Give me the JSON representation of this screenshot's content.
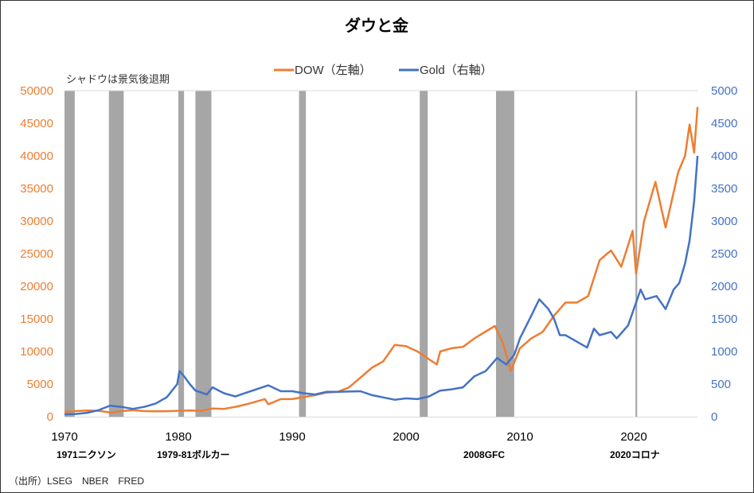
{
  "chart_data": {
    "type": "line",
    "title": "ダウと金",
    "shadow_note": "シャドウは景気後退期",
    "source": "（出所）LSEG　NBER　FRED",
    "legend_position": "top",
    "grid": false,
    "x_axis": {
      "range": [
        1970,
        2025.6
      ],
      "ticks": [
        "1970",
        "1980",
        "1990",
        "2000",
        "2010",
        "2020"
      ]
    },
    "y_left": {
      "range": [
        0,
        50000
      ],
      "ticks": [
        "0",
        "5000",
        "10000",
        "15000",
        "20000",
        "25000",
        "30000",
        "35000",
        "40000",
        "45000",
        "50000"
      ],
      "color": "#ED7D31"
    },
    "y_right": {
      "range": [
        0,
        5000
      ],
      "ticks": [
        "0",
        "500",
        "1000",
        "1500",
        "2000",
        "2500",
        "3000",
        "3500",
        "4000",
        "4500",
        "5000"
      ],
      "color": "#4472C4"
    },
    "recessions": [
      [
        1970.0,
        1970.9
      ],
      [
        1973.9,
        1975.2
      ],
      [
        1980.0,
        1980.5
      ],
      [
        1981.5,
        1982.9
      ],
      [
        1990.6,
        1991.2
      ],
      [
        2001.2,
        2001.9
      ],
      [
        2007.9,
        2009.5
      ],
      [
        2020.15,
        2020.3
      ]
    ],
    "annotations": [
      "1971ニクソン",
      "1979-81ボルカー",
      "2008GFC",
      "2020コロナ"
    ],
    "series": [
      {
        "name": "DOW（左軸）",
        "axis": "left",
        "color": "#ED7D31",
        "x": [
          1970,
          1971,
          1972,
          1973,
          1974,
          1975,
          1976,
          1977,
          1978,
          1979,
          1980,
          1981,
          1982,
          1983,
          1984,
          1985,
          1986,
          1987.6,
          1987.9,
          1989,
          1990,
          1991,
          1992,
          1993,
          1994,
          1995,
          1996,
          1997,
          1998,
          1999,
          2000,
          2001,
          2002.7,
          2003,
          2004,
          2005,
          2006,
          2007.8,
          2008.5,
          2009.2,
          2010,
          2011,
          2012,
          2013,
          2014,
          2015,
          2016,
          2017,
          2018,
          2018.9,
          2019.9,
          2020.2,
          2020.9,
          2021.9,
          2022.8,
          2023.9,
          2024.5,
          2024.9,
          2025.3,
          2025.6
        ],
        "y": [
          750,
          850,
          950,
          900,
          650,
          850,
          1000,
          850,
          820,
          840,
          900,
          950,
          900,
          1250,
          1200,
          1500,
          1900,
          2700,
          1900,
          2700,
          2700,
          3000,
          3300,
          3700,
          3800,
          4500,
          6000,
          7500,
          8500,
          11000,
          10800,
          10000,
          8000,
          10000,
          10500,
          10700,
          12000,
          13900,
          11300,
          7000,
          10500,
          12000,
          13000,
          15500,
          17500,
          17500,
          18500,
          24000,
          25500,
          23000,
          28500,
          21900,
          30000,
          36000,
          29000,
          37500,
          40000,
          44800,
          40500,
          47500
        ]
      },
      {
        "name": "Gold（右軸）",
        "axis": "right",
        "color": "#4472C4",
        "x": [
          1970,
          1971,
          1972,
          1973,
          1974,
          1975,
          1976,
          1977,
          1978,
          1979,
          1979.9,
          1980.1,
          1980.5,
          1981,
          1981.5,
          1982.5,
          1983,
          1984,
          1985,
          1986,
          1987.9,
          1989,
          1990,
          1991,
          1992,
          1993,
          1994,
          1995,
          1996,
          1997,
          1998,
          1999,
          2000,
          2001,
          2002,
          2003,
          2004,
          2005,
          2006,
          2007,
          2008,
          2008.8,
          2009.5,
          2010,
          2011,
          2011.7,
          2012.5,
          2013,
          2013.5,
          2014,
          2015,
          2015.9,
          2016.5,
          2017,
          2018,
          2018.5,
          2019.5,
          2020.6,
          2021,
          2022,
          2022.8,
          2023.5,
          2024,
          2024.5,
          2024.9,
          2025.3,
          2025.6
        ],
        "y": [
          36,
          41,
          60,
          100,
          170,
          150,
          120,
          150,
          200,
          300,
          500,
          700,
          620,
          500,
          400,
          340,
          450,
          360,
          310,
          370,
          480,
          390,
          390,
          360,
          340,
          380,
          380,
          385,
          390,
          330,
          295,
          260,
          280,
          270,
          310,
          400,
          420,
          450,
          620,
          700,
          900,
          800,
          950,
          1200,
          1550,
          1800,
          1650,
          1500,
          1250,
          1250,
          1150,
          1060,
          1350,
          1250,
          1300,
          1200,
          1400,
          1950,
          1800,
          1850,
          1650,
          1950,
          2050,
          2350,
          2700,
          3300,
          4000
        ]
      }
    ]
  }
}
